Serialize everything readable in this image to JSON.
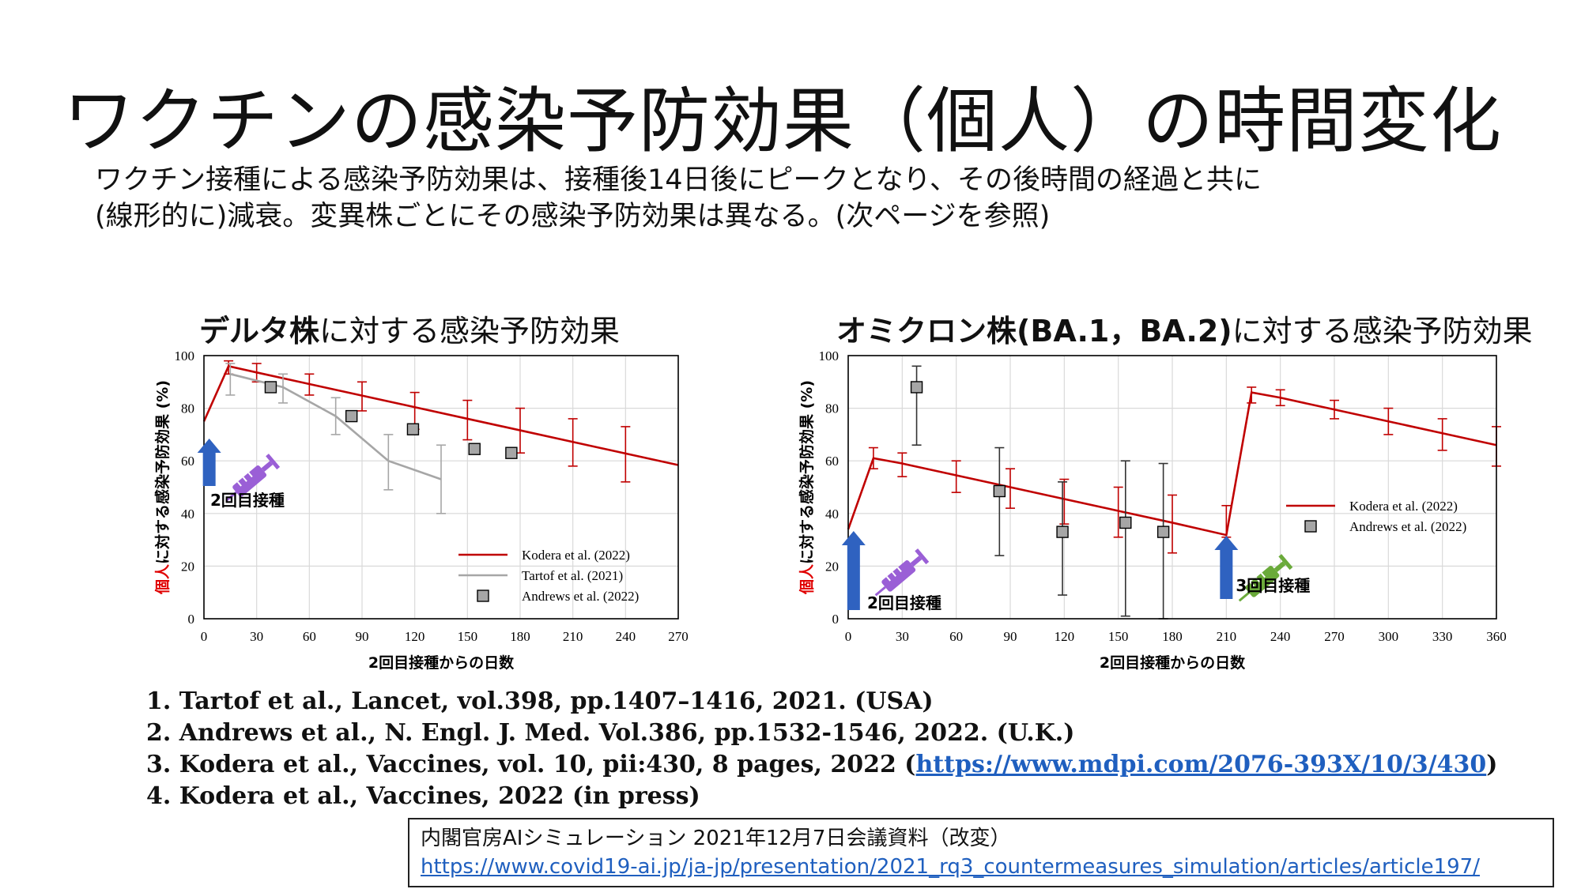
{
  "slide": {
    "title": "ワクチンの感染予防効果（個人）の時間変化",
    "intro_line1": "ワクチン接種による感染予防効果は、接種後14日後にピークとなり、その後時間の経過と共に",
    "intro_line2": "(線形的に)減衰。変異株ごとにその感染予防効果は異なる。(次ページを参照)"
  },
  "references": [
    "1. Tartof et al., Lancet, vol.398, pp.1407–1416, 2021. (USA)",
    "2. Andrews et al., N. Engl. J. Med. Vol.386, pp.1532-1546, 2022. (U.K.)",
    "3. Kodera et al., Vaccines, vol. 10, pii:430, 8 pages, 2022 (",
    "4. Kodera et al., Vaccines, 2022 (in press)"
  ],
  "reference3_link": "https://www.mdpi.com/2076-393X/10/3/430",
  "reference3_tail": ")",
  "source": {
    "text": "内閣官房AIシミュレーション 2021年12月7日会議資料（改変）",
    "link": "https://www.covid19-ai.jp/ja-jp/presentation/2021_rq3_countermeasures_simulation/articles/article197/"
  },
  "colors": {
    "kodera": "#c00000",
    "tartof": "#a6a6a6",
    "andrews_marker": "#a6a6a6",
    "arrow": "#2f62c0",
    "syringe1": "#9a5fd6",
    "syringe2": "#6aaa3a",
    "ylabel_red": "#e00000"
  },
  "chart_data": [
    {
      "type": "line",
      "title_bold": "デルタ株",
      "title_rest": "に対する感染予防効果",
      "xlabel": "2回目接種からの日数",
      "ylabel_red": "個人",
      "ylabel_rest": "に対する感染予防効果 (%)",
      "xlim": [
        0,
        270
      ],
      "ylim": [
        0,
        100
      ],
      "xticks": [
        0,
        30,
        60,
        90,
        120,
        150,
        180,
        210,
        240,
        270
      ],
      "yticks": [
        0,
        20,
        40,
        60,
        80,
        100
      ],
      "grid": true,
      "legend_position": "bottom-right",
      "annotation": "2回目接種",
      "series": [
        {
          "name": "Kodera et al. (2022)",
          "kind": "line",
          "color": "#c00000",
          "x": [
            0,
            14,
            30,
            60,
            90,
            120,
            150,
            180,
            210,
            240,
            270
          ],
          "y": [
            75,
            96,
            93.6,
            89.2,
            84.8,
            80.4,
            76,
            71.6,
            67.2,
            62.8,
            58.4
          ],
          "errorbars": [
            {
              "x": 14,
              "lo": 93,
              "hi": 98
            },
            {
              "x": 30,
              "lo": 90,
              "hi": 97
            },
            {
              "x": 60,
              "lo": 85,
              "hi": 93
            },
            {
              "x": 90,
              "lo": 79,
              "hi": 90
            },
            {
              "x": 120,
              "lo": 72,
              "hi": 86
            },
            {
              "x": 150,
              "lo": 68,
              "hi": 83
            },
            {
              "x": 180,
              "lo": 63,
              "hi": 80
            },
            {
              "x": 210,
              "lo": 58,
              "hi": 76
            },
            {
              "x": 240,
              "lo": 52,
              "hi": 73
            }
          ]
        },
        {
          "name": "Tartof et al.  (2021)",
          "kind": "line",
          "color": "#a6a6a6",
          "x": [
            15,
            45,
            75,
            105,
            135
          ],
          "y": [
            93,
            88,
            77,
            60,
            53
          ],
          "errorbars": [
            {
              "x": 15,
              "lo": 85,
              "hi": 97
            },
            {
              "x": 45,
              "lo": 82,
              "hi": 93
            },
            {
              "x": 75,
              "lo": 70,
              "hi": 84
            },
            {
              "x": 105,
              "lo": 49,
              "hi": 70
            },
            {
              "x": 135,
              "lo": 40,
              "hi": 66
            }
          ]
        },
        {
          "name": "Andrews et al. (2022)",
          "kind": "marker",
          "color": "#a6a6a6",
          "x": [
            38,
            84,
            119,
            154,
            175
          ],
          "y": [
            88,
            77,
            72,
            64.5,
            63
          ]
        }
      ]
    },
    {
      "type": "line",
      "title_bold": "オミクロン株(BA.1，BA.2)",
      "title_rest": "に対する感染予防効果",
      "xlabel": "2回目接種からの日数",
      "ylabel_red": "個人",
      "ylabel_rest": "に対する感染予防効果 (%)",
      "xlim": [
        0,
        360
      ],
      "ylim": [
        0,
        100
      ],
      "xticks": [
        0,
        30,
        60,
        90,
        120,
        150,
        180,
        210,
        240,
        270,
        300,
        330,
        360
      ],
      "yticks": [
        0,
        20,
        40,
        60,
        80,
        100
      ],
      "grid": true,
      "legend_position": "right",
      "annotation_1": "2回目接種",
      "annotation_2": "3回目接種",
      "series": [
        {
          "name": "Kodera et al. (2022)",
          "kind": "line",
          "color": "#c00000",
          "x": [
            0,
            14,
            30,
            60,
            90,
            120,
            150,
            180,
            210,
            224,
            240,
            270,
            300,
            330,
            360
          ],
          "y": [
            34,
            61,
            59,
            54.5,
            50,
            45.5,
            41,
            36.5,
            31.8,
            86,
            84,
            79.5,
            75,
            70.5,
            66
          ],
          "errorbars": [
            {
              "x": 14,
              "lo": 57,
              "hi": 65
            },
            {
              "x": 30,
              "lo": 54,
              "hi": 63
            },
            {
              "x": 60,
              "lo": 48,
              "hi": 60
            },
            {
              "x": 90,
              "lo": 42,
              "hi": 57
            },
            {
              "x": 120,
              "lo": 36,
              "hi": 53
            },
            {
              "x": 150,
              "lo": 31,
              "hi": 50
            },
            {
              "x": 180,
              "lo": 25,
              "hi": 47
            },
            {
              "x": 210,
              "lo": 31,
              "hi": 43
            },
            {
              "x": 224,
              "lo": 82,
              "hi": 88
            },
            {
              "x": 240,
              "lo": 81,
              "hi": 87
            },
            {
              "x": 270,
              "lo": 76,
              "hi": 83
            },
            {
              "x": 300,
              "lo": 70,
              "hi": 80
            },
            {
              "x": 330,
              "lo": 64,
              "hi": 76
            },
            {
              "x": 360,
              "lo": 58,
              "hi": 73
            }
          ]
        },
        {
          "name": "Andrews et al. (2022)",
          "kind": "marker",
          "color": "#a6a6a6",
          "x": [
            38,
            84,
            119,
            154,
            175
          ],
          "y": [
            88,
            48.5,
            33,
            36.5,
            33
          ],
          "errorbars": [
            {
              "x": 38,
              "lo": 66,
              "hi": 96
            },
            {
              "x": 84,
              "lo": 24,
              "hi": 65
            },
            {
              "x": 119,
              "lo": 9,
              "hi": 52
            },
            {
              "x": 154,
              "lo": 1,
              "hi": 60
            },
            {
              "x": 175,
              "lo": 0,
              "hi": 59
            }
          ]
        }
      ]
    }
  ]
}
